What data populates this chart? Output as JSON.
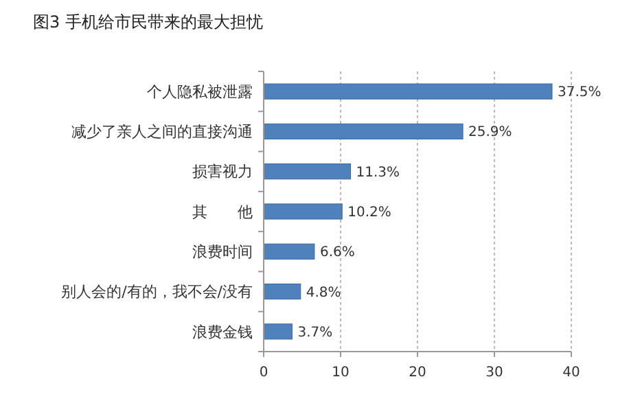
{
  "chart_data": {
    "type": "bar",
    "orientation": "horizontal",
    "title": "图3 手机给市民带来的最大担忧",
    "categories": [
      "个人隐私被泄露",
      "减少了亲人之间的直接沟通",
      "损害视力",
      "其　　他",
      "浪费时间",
      "别人会的/有的，我不会/没有",
      "浪费金钱"
    ],
    "values": [
      37.5,
      25.9,
      11.3,
      10.2,
      6.6,
      4.8,
      3.7
    ],
    "value_labels": [
      "37.5%",
      "25.9%",
      "11.3%",
      "10.2%",
      "6.6%",
      "4.8%",
      "3.7%"
    ],
    "color": "#4f81bd",
    "xlim": [
      0,
      40
    ],
    "xticks": [
      0,
      10,
      20,
      30,
      40
    ],
    "grid": "x"
  }
}
